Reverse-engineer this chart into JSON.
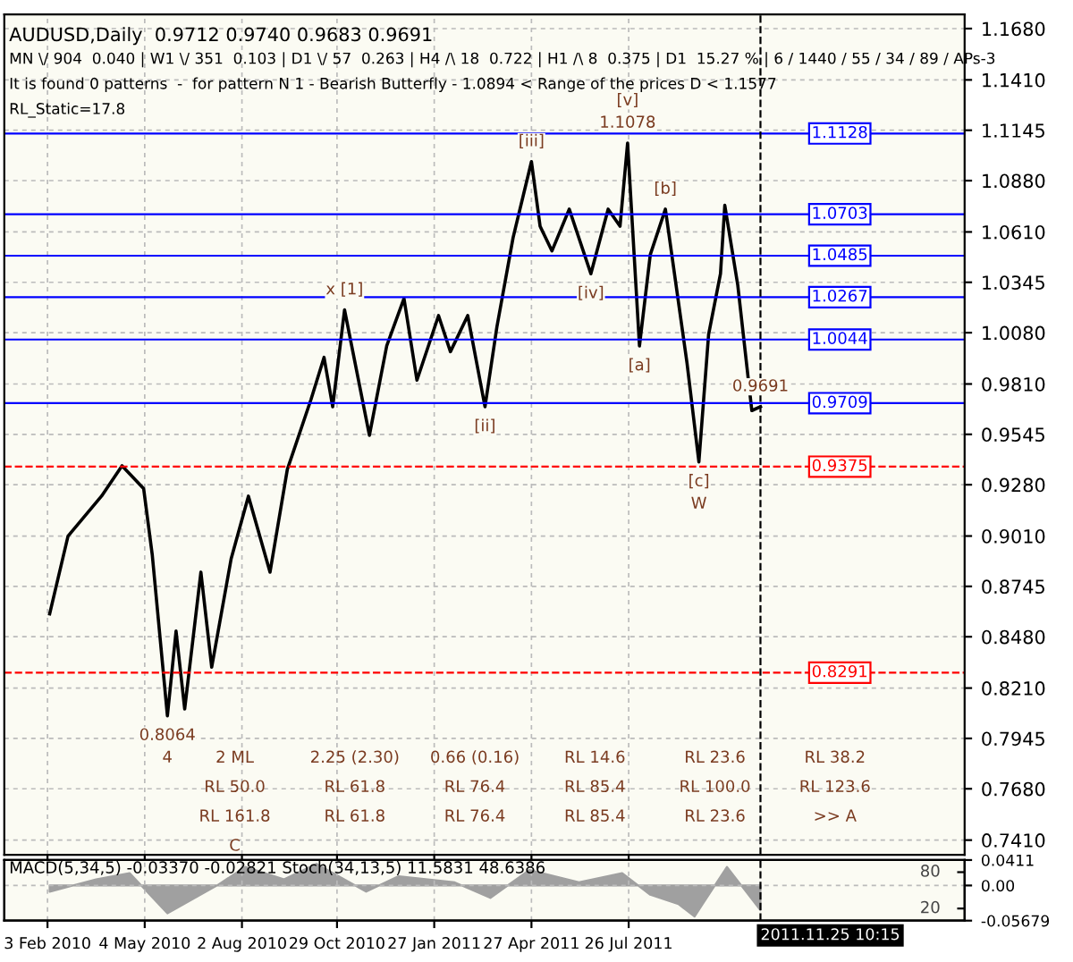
{
  "chart_data": [
    {
      "type": "line",
      "title": "AUDUSD,Daily  0.9712 0.9740 0.9683 0.9691",
      "subtitle": "MN \\/ 904  0.040 | W1 \\/ 351  0.103 | D1 \\/ 57  0.263 | H4 /\\ 18  0.722 | H1 /\\ 8  0.375 | D1  15.27 % | 6 / 1440 / 55 / 34 / 89 / APs-3",
      "annotations": [
        "It is found 0 patterns  -  for pattern N 1 - Bearish Butterfly - 1.0894 < Range of the prices D < 1.1577",
        "RL_Static=17.8",
        {
          "text": "0.8064",
          "x": "2010-05-25",
          "y": 0.8064
        },
        {
          "text": "4",
          "x": "2010-05-25",
          "y": 0.8064
        },
        {
          "text": "1.1078",
          "x": "2011-07-25",
          "y": 1.1078
        },
        {
          "text": "[v]",
          "x": "2011-07-25",
          "y": 1.1078
        },
        {
          "text": "0.9691",
          "x": "2011-11-25",
          "y": 0.9691
        },
        {
          "text": "[iii]",
          "x": "2011-04-27",
          "y": 1.098
        },
        {
          "text": "[b]",
          "x": "2011-08-29",
          "y": 1.073
        },
        {
          "text": "[iv]",
          "x": "2011-06-21",
          "y": 1.039
        },
        {
          "text": "[a]",
          "x": "2011-08-05",
          "y": 1.001
        },
        {
          "text": "[c]",
          "x": "2011-09-29",
          "y": 0.94
        },
        {
          "text": "W",
          "x": "2011-09-29",
          "y": 0.94
        },
        {
          "text": "[ii]",
          "x": "2011-03-15",
          "y": 0.969
        },
        {
          "text": "x [1]",
          "x": "2010-11-05",
          "y": 1.02
        },
        "2 ML",
        "2.25 (2.30)",
        "0.66 (0.16)",
        "RL 14.6",
        "RL 23.6",
        "RL 38.2",
        "RL 50.0",
        "RL 61.8",
        "RL 76.4",
        "RL 85.4",
        "RL 100.0",
        "RL 123.6",
        "RL 161.8",
        "RL 61.8",
        "RL 76.4",
        "RL 85.4",
        "RL 23.6",
        ">> A",
        "C"
      ],
      "series": [
        {
          "color": "#000000",
          "x": [
            "2010-02-05",
            "2010-02-22",
            "2010-03-25",
            "2010-04-13",
            "2010-05-03",
            "2010-05-11",
            "2010-05-25",
            "2010-06-02",
            "2010-06-10",
            "2010-06-25",
            "2010-07-05",
            "2010-07-23",
            "2010-08-08",
            "2010-08-28",
            "2010-09-13",
            "2010-10-05",
            "2010-10-17",
            "2010-10-25",
            "2010-11-05",
            "2010-11-28",
            "2010-12-14",
            "2010-12-30",
            "2011-01-11",
            "2011-01-31",
            "2011-02-11",
            "2011-02-27",
            "2011-03-15",
            "2011-03-26",
            "2011-04-10",
            "2011-04-27",
            "2011-05-05",
            "2011-05-16",
            "2011-06-01",
            "2011-06-21",
            "2011-07-07",
            "2011-07-18",
            "2011-07-25",
            "2011-08-05",
            "2011-08-15",
            "2011-08-29",
            "2011-09-18",
            "2011-09-29",
            "2011-10-08",
            "2011-10-19",
            "2011-10-23",
            "2011-11-04",
            "2011-11-17",
            "2011-11-25"
          ],
          "values": [
            0.86,
            0.901,
            0.922,
            0.938,
            0.926,
            0.891,
            0.8064,
            0.851,
            0.81,
            0.882,
            0.832,
            0.889,
            0.922,
            0.882,
            0.936,
            0.973,
            0.995,
            0.969,
            1.02,
            0.954,
            1.001,
            1.026,
            0.983,
            1.017,
            0.998,
            1.017,
            0.969,
            1.011,
            1.058,
            1.098,
            1.064,
            1.051,
            1.073,
            1.039,
            1.073,
            1.064,
            1.1078,
            1.001,
            1.049,
            1.073,
            0.992,
            0.94,
            1.007,
            1.039,
            1.075,
            1.033,
            0.967,
            0.9691
          ]
        }
      ],
      "ref_lines": [
        {
          "axis": "y",
          "value": 1.1128,
          "label": "1.1128",
          "color": "#0000ff",
          "line_style": "solid"
        },
        {
          "axis": "y",
          "value": 1.0703,
          "label": "1.0703",
          "color": "#0000ff",
          "line_style": "solid"
        },
        {
          "axis": "y",
          "value": 1.0485,
          "label": "1.0485",
          "color": "#0000ff",
          "line_style": "solid"
        },
        {
          "axis": "y",
          "value": 1.0267,
          "label": "1.0267",
          "color": "#0000ff",
          "line_style": "solid"
        },
        {
          "axis": "y",
          "value": 1.0044,
          "label": "1.0044",
          "color": "#0000ff",
          "line_style": "solid"
        },
        {
          "axis": "y",
          "value": 0.9709,
          "label": "0.9709",
          "color": "#0000ff",
          "line_style": "solid"
        },
        {
          "axis": "y",
          "value": 0.9375,
          "label": "0.9375",
          "color": "#ff0000",
          "line_style": "dashed"
        },
        {
          "axis": "y",
          "value": 0.8291,
          "label": "0.8291",
          "color": "#ff0000",
          "line_style": "dashed"
        },
        {
          "axis": "x",
          "value": "2011-11-25",
          "color": "#000000",
          "line_style": "dashed"
        }
      ],
      "xlim": [
        "2009-12-25",
        "2012-06-01"
      ],
      "xticks": [
        {
          "value": "2010-02-03",
          "label": null
        },
        {
          "value": "2010-05-04",
          "label": null
        },
        {
          "value": "2010-08-02",
          "label": null
        },
        {
          "value": "2010-10-29",
          "label": null
        },
        {
          "value": "2011-01-27",
          "label": null
        },
        {
          "value": "2011-04-27",
          "label": null
        },
        {
          "value": "2011-07-26",
          "label": null
        }
      ],
      "ylim": [
        0.7333,
        1.1755
      ],
      "yticks": [
        {
          "value": 1.168,
          "label": "1.1680"
        },
        {
          "value": 1.141,
          "label": "1.1410"
        },
        {
          "value": 1.1145,
          "label": "1.1145"
        },
        {
          "value": 1.088,
          "label": "1.0880"
        },
        {
          "value": 1.061,
          "label": "1.0610"
        },
        {
          "value": 1.0345,
          "label": "1.0345"
        },
        {
          "value": 1.008,
          "label": "1.0080"
        },
        {
          "value": 0.981,
          "label": "0.9810"
        },
        {
          "value": 0.9545,
          "label": "0.9545"
        },
        {
          "value": 0.928,
          "label": "0.9280"
        },
        {
          "value": 0.901,
          "label": "0.9010"
        },
        {
          "value": 0.8745,
          "label": "0.8745"
        },
        {
          "value": 0.848,
          "label": "0.8480"
        },
        {
          "value": 0.821,
          "label": "0.8210"
        },
        {
          "value": 0.7945,
          "label": "0.7945"
        },
        {
          "value": 0.768,
          "label": "0.7680"
        },
        {
          "value": 0.741,
          "label": "0.7410"
        }
      ],
      "grid": true,
      "tick_labels": "y",
      "line_style": "solid",
      "marker": "none"
    },
    {
      "type": "area",
      "title": "MACD(5,34,5) -0.03370 -0.02821 Stoch(34,13,5) 11.5831 48.6386",
      "series": [
        {
          "color": "#a0a0a0",
          "x": [
            "2010-02-05",
            "2010-03-20",
            "2010-04-20",
            "2010-05-25",
            "2010-07-10",
            "2010-08-05",
            "2010-09-10",
            "2010-10-10",
            "2010-11-25",
            "2010-12-25",
            "2011-02-15",
            "2011-03-20",
            "2011-04-25",
            "2011-06-10",
            "2011-07-20",
            "2011-08-15",
            "2011-09-10",
            "2011-09-25",
            "2011-10-25",
            "2011-11-25"
          ],
          "values": [
            -0.01,
            0.01,
            0.02,
            -0.045,
            0.0,
            0.03,
            0.01,
            0.035,
            -0.01,
            0.015,
            0.005,
            -0.02,
            0.025,
            0.005,
            0.02,
            -0.015,
            -0.03,
            -0.05,
            0.03,
            -0.04
          ]
        }
      ],
      "ref_lines": [
        {
          "axis": "x",
          "value": "2011-11-25",
          "label": "2011.11.25 10:15",
          "color": "#000000",
          "line_style": "dashed"
        }
      ],
      "xlim": [
        "2009-12-25",
        "2012-06-01"
      ],
      "xticks": [
        {
          "value": "2010-02-03",
          "label": "3 Feb 2010"
        },
        {
          "value": "2010-05-04",
          "label": "4 May 2010"
        },
        {
          "value": "2010-08-02",
          "label": "2 Aug 2010"
        },
        {
          "value": "2010-10-29",
          "label": "29 Oct 2010"
        },
        {
          "value": "2011-01-27",
          "label": "27 Jan 2011"
        },
        {
          "value": "2011-04-27",
          "label": "27 Apr 2011"
        },
        {
          "value": "2011-07-26",
          "label": "26 Jul 2011"
        }
      ],
      "ylim": [
        -0.05679,
        0.0411
      ],
      "yticks": [
        {
          "value": 0.0411,
          "label": "0.0411"
        },
        {
          "value": 0.0,
          "label": "0.00"
        },
        {
          "value": -0.05679,
          "label": "-0.05679"
        }
      ],
      "y2lim": [
        0,
        100
      ],
      "y2ticks": [
        20,
        80
      ],
      "grid": true
    }
  ]
}
